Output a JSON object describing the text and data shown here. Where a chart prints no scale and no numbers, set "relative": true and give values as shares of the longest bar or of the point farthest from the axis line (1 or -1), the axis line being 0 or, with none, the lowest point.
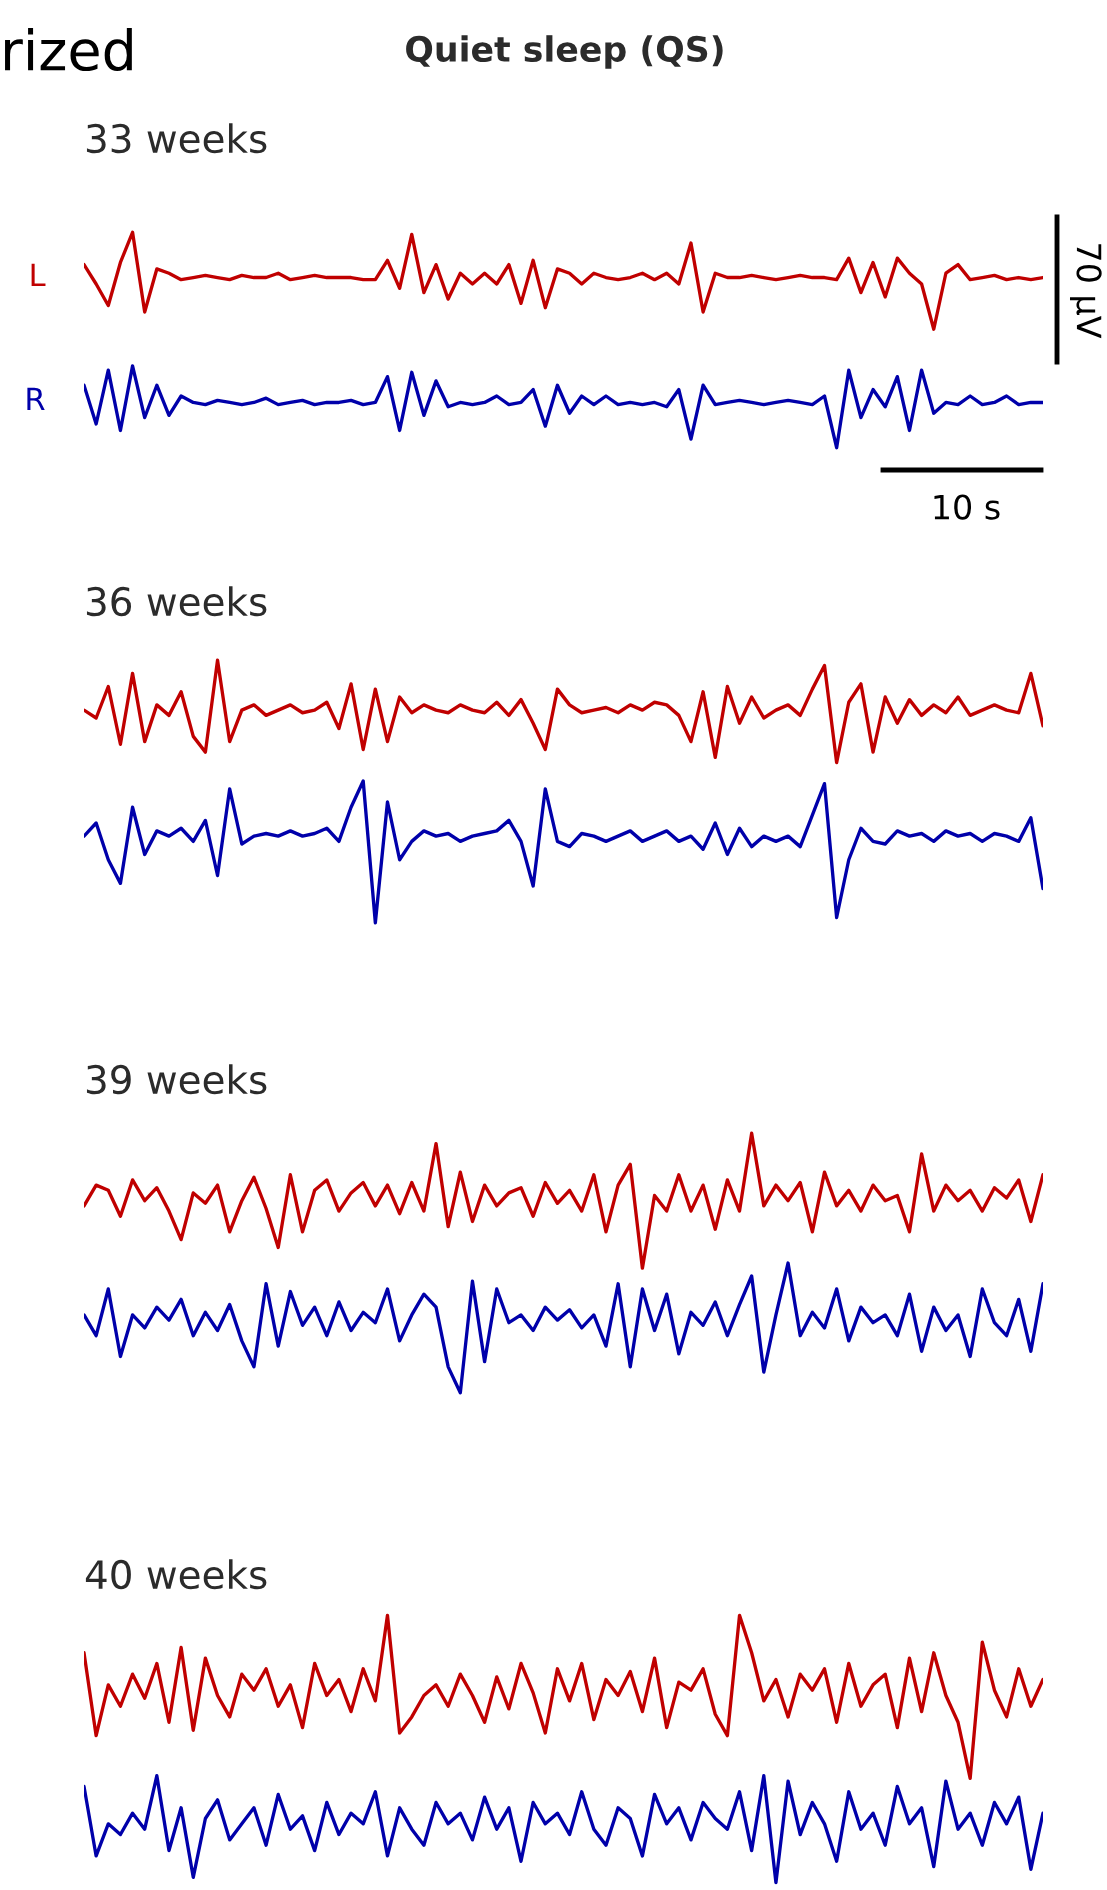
{
  "chart_data": [
    {
      "type": "line",
      "relative": true,
      "title": "Quiet sleep (QS)",
      "subtitle": "33 weeks",
      "annotations": [
        "rized",
        "70 µV",
        "10 s"
      ],
      "categories": [
        null,
        null,
        null,
        null,
        null,
        null,
        null,
        null,
        null,
        null,
        null,
        null,
        null,
        null,
        null,
        null,
        null,
        null,
        null,
        null,
        null,
        null,
        null,
        null,
        null,
        null,
        null,
        null,
        null,
        null,
        null,
        null,
        null,
        null,
        null,
        null,
        null,
        null,
        null,
        null,
        null,
        null,
        null,
        null,
        null,
        null,
        null,
        null,
        null,
        null,
        null,
        null,
        null,
        null,
        null,
        null,
        null,
        null,
        null,
        null,
        null,
        null,
        null,
        null,
        null,
        null,
        null,
        null,
        null,
        null,
        null,
        null,
        null,
        null,
        null,
        null,
        null,
        null,
        null,
        null
      ],
      "series": [
        {
          "name": "L",
          "color": "#c00000",
          "values": [
            0.85,
            0.76,
            0.66,
            0.86,
            1.0,
            0.63,
            0.83,
            0.81,
            0.78,
            0.79,
            0.8,
            0.79,
            0.78,
            0.8,
            0.79,
            0.79,
            0.81,
            0.78,
            0.79,
            0.8,
            0.79,
            0.79,
            0.79,
            0.78,
            0.78,
            0.87,
            0.74,
            0.99,
            0.72,
            0.85,
            0.69,
            0.81,
            0.76,
            0.81,
            0.76,
            0.85,
            0.67,
            0.87,
            0.65,
            0.83,
            0.81,
            0.76,
            0.81,
            0.79,
            0.78,
            0.79,
            0.81,
            0.78,
            0.81,
            0.76,
            0.95,
            0.63,
            0.81,
            0.79,
            0.79,
            0.8,
            0.79,
            0.78,
            0.79,
            0.8,
            0.79,
            0.79,
            0.78,
            0.88,
            0.72,
            0.86,
            0.7,
            0.88,
            0.81,
            0.76,
            0.55,
            0.81,
            0.85,
            0.78,
            0.79,
            0.8,
            0.78,
            0.79,
            0.78,
            0.79
          ]
        },
        {
          "name": "R",
          "color": "#0000aa",
          "values": [
            0.29,
            0.11,
            0.36,
            0.08,
            0.38,
            0.14,
            0.29,
            0.15,
            0.24,
            0.21,
            0.2,
            0.22,
            0.21,
            0.2,
            0.21,
            0.23,
            0.2,
            0.21,
            0.22,
            0.2,
            0.21,
            0.21,
            0.22,
            0.2,
            0.21,
            0.33,
            0.08,
            0.35,
            0.15,
            0.31,
            0.19,
            0.21,
            0.2,
            0.21,
            0.24,
            0.2,
            0.21,
            0.27,
            0.1,
            0.29,
            0.16,
            0.24,
            0.2,
            0.24,
            0.2,
            0.21,
            0.2,
            0.21,
            0.19,
            0.27,
            0.04,
            0.29,
            0.2,
            0.21,
            0.22,
            0.21,
            0.2,
            0.21,
            0.22,
            0.21,
            0.2,
            0.24,
            0.0,
            0.36,
            0.14,
            0.27,
            0.19,
            0.33,
            0.08,
            0.36,
            0.16,
            0.21,
            0.2,
            0.24,
            0.2,
            0.21,
            0.24,
            0.2,
            0.21,
            0.21
          ]
        }
      ]
    },
    {
      "type": "line",
      "relative": true,
      "subtitle": "36 weeks",
      "categories": [
        null,
        null,
        null,
        null,
        null,
        null,
        null,
        null,
        null,
        null,
        null,
        null,
        null,
        null,
        null,
        null,
        null,
        null,
        null,
        null,
        null,
        null,
        null,
        null,
        null,
        null,
        null,
        null,
        null,
        null,
        null,
        null,
        null,
        null,
        null,
        null,
        null,
        null,
        null,
        null,
        null,
        null,
        null,
        null,
        null,
        null,
        null,
        null,
        null,
        null,
        null,
        null,
        null,
        null,
        null,
        null,
        null,
        null,
        null,
        null,
        null,
        null,
        null,
        null,
        null,
        null,
        null,
        null,
        null,
        null,
        null,
        null,
        null,
        null,
        null,
        null,
        null,
        null,
        null,
        null
      ],
      "series": [
        {
          "color": "#c00000",
          "values": [
            0.81,
            0.78,
            0.9,
            0.68,
            0.95,
            0.69,
            0.83,
            0.79,
            0.88,
            0.71,
            0.65,
            1.0,
            0.69,
            0.81,
            0.83,
            0.79,
            0.81,
            0.83,
            0.8,
            0.81,
            0.84,
            0.74,
            0.91,
            0.66,
            0.89,
            0.69,
            0.86,
            0.8,
            0.83,
            0.81,
            0.8,
            0.83,
            0.81,
            0.8,
            0.84,
            0.79,
            0.85,
            0.76,
            0.66,
            0.89,
            0.83,
            0.8,
            0.81,
            0.82,
            0.8,
            0.83,
            0.81,
            0.84,
            0.83,
            0.79,
            0.69,
            0.88,
            0.63,
            0.9,
            0.76,
            0.86,
            0.78,
            0.81,
            0.83,
            0.79,
            0.89,
            0.98,
            0.61,
            0.84,
            0.91,
            0.65,
            0.86,
            0.76,
            0.85,
            0.79,
            0.83,
            0.8,
            0.86,
            0.79,
            0.81,
            0.83,
            0.81,
            0.8,
            0.95,
            0.75
          ]
        },
        {
          "color": "#0000aa",
          "values": [
            0.33,
            0.38,
            0.24,
            0.15,
            0.44,
            0.26,
            0.35,
            0.33,
            0.36,
            0.31,
            0.39,
            0.18,
            0.51,
            0.3,
            0.33,
            0.34,
            0.33,
            0.35,
            0.33,
            0.34,
            0.36,
            0.31,
            0.44,
            0.54,
            0.0,
            0.46,
            0.24,
            0.31,
            0.35,
            0.33,
            0.34,
            0.31,
            0.33,
            0.34,
            0.35,
            0.39,
            0.31,
            0.14,
            0.51,
            0.31,
            0.29,
            0.34,
            0.33,
            0.31,
            0.33,
            0.35,
            0.31,
            0.33,
            0.35,
            0.31,
            0.33,
            0.28,
            0.38,
            0.26,
            0.36,
            0.29,
            0.33,
            0.31,
            0.33,
            0.29,
            0.41,
            0.53,
            0.02,
            0.24,
            0.36,
            0.31,
            0.3,
            0.35,
            0.33,
            0.34,
            0.31,
            0.35,
            0.33,
            0.34,
            0.31,
            0.34,
            0.33,
            0.31,
            0.4,
            0.13
          ]
        }
      ]
    },
    {
      "type": "line",
      "relative": true,
      "subtitle": "39 weeks",
      "categories": [
        null,
        null,
        null,
        null,
        null,
        null,
        null,
        null,
        null,
        null,
        null,
        null,
        null,
        null,
        null,
        null,
        null,
        null,
        null,
        null,
        null,
        null,
        null,
        null,
        null,
        null,
        null,
        null,
        null,
        null,
        null,
        null,
        null,
        null,
        null,
        null,
        null,
        null,
        null,
        null,
        null,
        null,
        null,
        null,
        null,
        null,
        null,
        null,
        null,
        null,
        null,
        null,
        null,
        null,
        null,
        null,
        null,
        null,
        null,
        null,
        null,
        null,
        null,
        null,
        null,
        null,
        null,
        null,
        null,
        null,
        null,
        null,
        null,
        null,
        null,
        null,
        null,
        null,
        null,
        null
      ],
      "series": [
        {
          "color": "#c00000",
          "values": [
            0.72,
            0.8,
            0.78,
            0.68,
            0.82,
            0.74,
            0.79,
            0.7,
            0.59,
            0.77,
            0.73,
            0.8,
            0.62,
            0.74,
            0.83,
            0.71,
            0.56,
            0.84,
            0.62,
            0.78,
            0.82,
            0.7,
            0.77,
            0.81,
            0.72,
            0.8,
            0.69,
            0.81,
            0.7,
            0.96,
            0.64,
            0.85,
            0.66,
            0.8,
            0.72,
            0.77,
            0.79,
            0.68,
            0.81,
            0.73,
            0.78,
            0.7,
            0.84,
            0.62,
            0.8,
            0.88,
            0.48,
            0.76,
            0.7,
            0.84,
            0.7,
            0.8,
            0.63,
            0.82,
            0.7,
            1.0,
            0.72,
            0.8,
            0.74,
            0.81,
            0.62,
            0.85,
            0.72,
            0.78,
            0.7,
            0.8,
            0.74,
            0.76,
            0.62,
            0.92,
            0.7,
            0.8,
            0.74,
            0.78,
            0.7,
            0.79,
            0.75,
            0.82,
            0.66,
            0.84
          ]
        },
        {
          "color": "#0000aa",
          "values": [
            0.3,
            0.22,
            0.4,
            0.14,
            0.3,
            0.25,
            0.33,
            0.28,
            0.36,
            0.22,
            0.31,
            0.24,
            0.34,
            0.2,
            0.1,
            0.42,
            0.18,
            0.39,
            0.26,
            0.33,
            0.22,
            0.35,
            0.24,
            0.31,
            0.27,
            0.4,
            0.2,
            0.3,
            0.38,
            0.33,
            0.1,
            0.0,
            0.43,
            0.12,
            0.4,
            0.27,
            0.3,
            0.24,
            0.33,
            0.28,
            0.32,
            0.25,
            0.3,
            0.18,
            0.42,
            0.1,
            0.4,
            0.24,
            0.38,
            0.15,
            0.31,
            0.26,
            0.35,
            0.22,
            0.34,
            0.45,
            0.08,
            0.3,
            0.5,
            0.22,
            0.31,
            0.25,
            0.4,
            0.2,
            0.33,
            0.27,
            0.3,
            0.22,
            0.38,
            0.16,
            0.33,
            0.24,
            0.3,
            0.14,
            0.4,
            0.27,
            0.22,
            0.36,
            0.16,
            0.42
          ]
        }
      ]
    },
    {
      "type": "line",
      "relative": true,
      "subtitle": "40 weeks",
      "categories": [
        null,
        null,
        null,
        null,
        null,
        null,
        null,
        null,
        null,
        null,
        null,
        null,
        null,
        null,
        null,
        null,
        null,
        null,
        null,
        null,
        null,
        null,
        null,
        null,
        null,
        null,
        null,
        null,
        null,
        null,
        null,
        null,
        null,
        null,
        null,
        null,
        null,
        null,
        null,
        null,
        null,
        null,
        null,
        null,
        null,
        null,
        null,
        null,
        null,
        null,
        null,
        null,
        null,
        null,
        null,
        null,
        null,
        null,
        null,
        null,
        null,
        null,
        null,
        null,
        null,
        null,
        null,
        null,
        null,
        null,
        null,
        null,
        null,
        null,
        null,
        null,
        null,
        null,
        null,
        null
      ],
      "series": [
        {
          "color": "#c00000",
          "values": [
            0.86,
            0.55,
            0.74,
            0.66,
            0.78,
            0.69,
            0.82,
            0.6,
            0.88,
            0.57,
            0.84,
            0.7,
            0.62,
            0.78,
            0.72,
            0.8,
            0.66,
            0.74,
            0.58,
            0.82,
            0.7,
            0.76,
            0.64,
            0.8,
            0.68,
            1.0,
            0.56,
            0.62,
            0.7,
            0.74,
            0.66,
            0.78,
            0.7,
            0.6,
            0.77,
            0.65,
            0.82,
            0.71,
            0.56,
            0.8,
            0.68,
            0.82,
            0.61,
            0.76,
            0.7,
            0.79,
            0.64,
            0.84,
            0.58,
            0.75,
            0.72,
            0.8,
            0.63,
            0.55,
            1.0,
            0.86,
            0.68,
            0.76,
            0.62,
            0.78,
            0.72,
            0.8,
            0.6,
            0.82,
            0.66,
            0.74,
            0.78,
            0.58,
            0.84,
            0.64,
            0.86,
            0.7,
            0.6,
            0.39,
            0.9,
            0.72,
            0.62,
            0.8,
            0.66,
            0.76
          ]
        },
        {
          "color": "#0000aa",
          "values": [
            0.36,
            0.1,
            0.22,
            0.18,
            0.26,
            0.2,
            0.4,
            0.12,
            0.28,
            0.02,
            0.24,
            0.31,
            0.16,
            0.22,
            0.28,
            0.14,
            0.33,
            0.2,
            0.25,
            0.12,
            0.3,
            0.18,
            0.26,
            0.22,
            0.34,
            0.1,
            0.28,
            0.2,
            0.14,
            0.3,
            0.22,
            0.26,
            0.16,
            0.32,
            0.2,
            0.28,
            0.08,
            0.3,
            0.22,
            0.26,
            0.18,
            0.34,
            0.2,
            0.14,
            0.28,
            0.24,
            0.1,
            0.33,
            0.22,
            0.28,
            0.16,
            0.3,
            0.24,
            0.2,
            0.34,
            0.12,
            0.4,
            0.0,
            0.38,
            0.18,
            0.3,
            0.22,
            0.08,
            0.34,
            0.2,
            0.26,
            0.14,
            0.36,
            0.22,
            0.28,
            0.06,
            0.38,
            0.2,
            0.26,
            0.14,
            0.3,
            0.22,
            0.32,
            0.05,
            0.26
          ]
        }
      ]
    }
  ]
}
